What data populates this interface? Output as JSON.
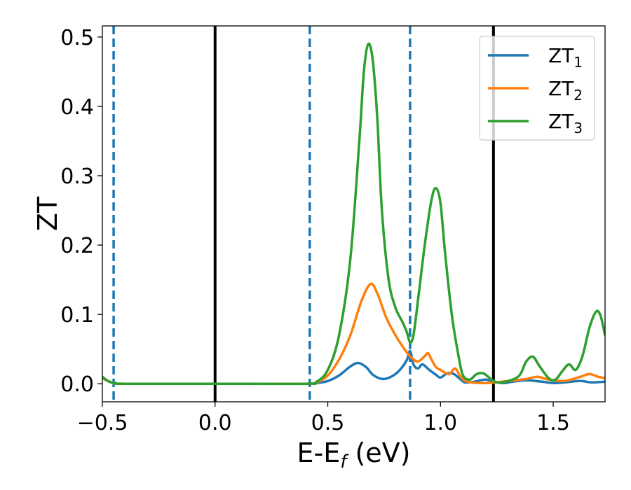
{
  "chart_data": {
    "type": "line",
    "xlabel": "E-E",
    "xlabel_sub": "f",
    "xlabel_unit": " (eV)",
    "ylabel": "ZT",
    "xlim": [
      -0.5,
      1.73
    ],
    "ylim": [
      -0.026,
      0.516
    ],
    "xticks": [
      -0.5,
      0.0,
      0.5,
      1.0,
      1.5
    ],
    "xtick_labels": [
      "−0.5",
      "0.0",
      "0.5",
      "1.0",
      "1.5"
    ],
    "yticks": [
      0.0,
      0.1,
      0.2,
      0.3,
      0.4,
      0.5
    ],
    "ytick_labels": [
      "0.0",
      "0.1",
      "0.2",
      "0.3",
      "0.4",
      "0.5"
    ],
    "grid": false,
    "legend_position": "top-right",
    "vertical_lines": [
      {
        "x": -0.45,
        "style": "dashed",
        "color": "#1f77b4"
      },
      {
        "x": 0.0,
        "style": "solid",
        "color": "#000000"
      },
      {
        "x": 0.42,
        "style": "dashed",
        "color": "#1f77b4"
      },
      {
        "x": 0.865,
        "style": "dashed",
        "color": "#1f77b4"
      },
      {
        "x": 1.235,
        "style": "solid",
        "color": "#000000"
      }
    ],
    "series": [
      {
        "name": "ZT",
        "sub": "1",
        "color": "#1f77b4",
        "points": [
          [
            -0.5,
            0.008
          ],
          [
            -0.45,
            0.001
          ],
          [
            -0.4,
            0
          ],
          [
            0.0,
            0
          ],
          [
            0.4,
            0
          ],
          [
            0.45,
            0.001
          ],
          [
            0.5,
            0.004
          ],
          [
            0.55,
            0.012
          ],
          [
            0.6,
            0.025
          ],
          [
            0.635,
            0.03
          ],
          [
            0.67,
            0.024
          ],
          [
            0.7,
            0.013
          ],
          [
            0.74,
            0.007
          ],
          [
            0.78,
            0.01
          ],
          [
            0.82,
            0.02
          ],
          [
            0.85,
            0.034
          ],
          [
            0.865,
            0.047
          ],
          [
            0.88,
            0.028
          ],
          [
            0.9,
            0.022
          ],
          [
            0.92,
            0.028
          ],
          [
            0.95,
            0.02
          ],
          [
            0.98,
            0.013
          ],
          [
            1.0,
            0.009
          ],
          [
            1.03,
            0.015
          ],
          [
            1.06,
            0.014
          ],
          [
            1.09,
            0.006
          ],
          [
            1.11,
            0.002
          ],
          [
            1.15,
            0.003
          ],
          [
            1.2,
            0.006
          ],
          [
            1.235,
            0.003
          ],
          [
            1.28,
            0.001
          ],
          [
            1.32,
            0.003
          ],
          [
            1.38,
            0.005
          ],
          [
            1.45,
            0.003
          ],
          [
            1.5,
            0.001
          ],
          [
            1.55,
            0.002
          ],
          [
            1.62,
            0.004
          ],
          [
            1.67,
            0.002
          ],
          [
            1.73,
            0.003
          ]
        ]
      },
      {
        "name": "ZT",
        "sub": "2",
        "color": "#ff7f0e",
        "points": [
          [
            -0.5,
            0.008
          ],
          [
            -0.45,
            0.001
          ],
          [
            -0.4,
            0
          ],
          [
            0.0,
            0
          ],
          [
            0.4,
            0
          ],
          [
            0.45,
            0.002
          ],
          [
            0.5,
            0.012
          ],
          [
            0.55,
            0.035
          ],
          [
            0.6,
            0.07
          ],
          [
            0.65,
            0.12
          ],
          [
            0.69,
            0.144
          ],
          [
            0.72,
            0.13
          ],
          [
            0.76,
            0.095
          ],
          [
            0.8,
            0.07
          ],
          [
            0.84,
            0.05
          ],
          [
            0.87,
            0.038
          ],
          [
            0.9,
            0.032
          ],
          [
            0.93,
            0.04
          ],
          [
            0.945,
            0.044
          ],
          [
            0.96,
            0.035
          ],
          [
            0.98,
            0.024
          ],
          [
            1.0,
            0.02
          ],
          [
            1.02,
            0.016
          ],
          [
            1.04,
            0.014
          ],
          [
            1.065,
            0.022
          ],
          [
            1.09,
            0.01
          ],
          [
            1.12,
            0.003
          ],
          [
            1.2,
            0.001
          ],
          [
            1.3,
            0.004
          ],
          [
            1.38,
            0.007
          ],
          [
            1.43,
            0.01
          ],
          [
            1.48,
            0.006
          ],
          [
            1.55,
            0.004
          ],
          [
            1.62,
            0.01
          ],
          [
            1.66,
            0.014
          ],
          [
            1.7,
            0.01
          ],
          [
            1.73,
            0.008
          ]
        ]
      },
      {
        "name": "ZT",
        "sub": "3",
        "color": "#2ca02c",
        "points": [
          [
            -0.5,
            0.01
          ],
          [
            -0.47,
            0.003
          ],
          [
            -0.44,
            0.001
          ],
          [
            -0.4,
            0
          ],
          [
            0.0,
            0
          ],
          [
            0.4,
            0
          ],
          [
            0.45,
            0.003
          ],
          [
            0.5,
            0.02
          ],
          [
            0.55,
            0.07
          ],
          [
            0.6,
            0.18
          ],
          [
            0.64,
            0.35
          ],
          [
            0.66,
            0.45
          ],
          [
            0.68,
            0.49
          ],
          [
            0.7,
            0.465
          ],
          [
            0.72,
            0.38
          ],
          [
            0.74,
            0.25
          ],
          [
            0.77,
            0.15
          ],
          [
            0.8,
            0.11
          ],
          [
            0.83,
            0.09
          ],
          [
            0.85,
            0.075
          ],
          [
            0.865,
            0.06
          ],
          [
            0.88,
            0.07
          ],
          [
            0.9,
            0.12
          ],
          [
            0.93,
            0.2
          ],
          [
            0.96,
            0.265
          ],
          [
            0.98,
            0.282
          ],
          [
            1.0,
            0.26
          ],
          [
            1.02,
            0.19
          ],
          [
            1.05,
            0.1
          ],
          [
            1.08,
            0.04
          ],
          [
            1.1,
            0.012
          ],
          [
            1.13,
            0.006
          ],
          [
            1.16,
            0.014
          ],
          [
            1.19,
            0.015
          ],
          [
            1.22,
            0.008
          ],
          [
            1.25,
            0.002
          ],
          [
            1.3,
            0.004
          ],
          [
            1.35,
            0.012
          ],
          [
            1.38,
            0.032
          ],
          [
            1.41,
            0.039
          ],
          [
            1.44,
            0.025
          ],
          [
            1.48,
            0.008
          ],
          [
            1.51,
            0.006
          ],
          [
            1.54,
            0.018
          ],
          [
            1.57,
            0.028
          ],
          [
            1.6,
            0.02
          ],
          [
            1.63,
            0.04
          ],
          [
            1.66,
            0.08
          ],
          [
            1.69,
            0.104
          ],
          [
            1.71,
            0.098
          ],
          [
            1.73,
            0.07
          ]
        ]
      }
    ]
  }
}
